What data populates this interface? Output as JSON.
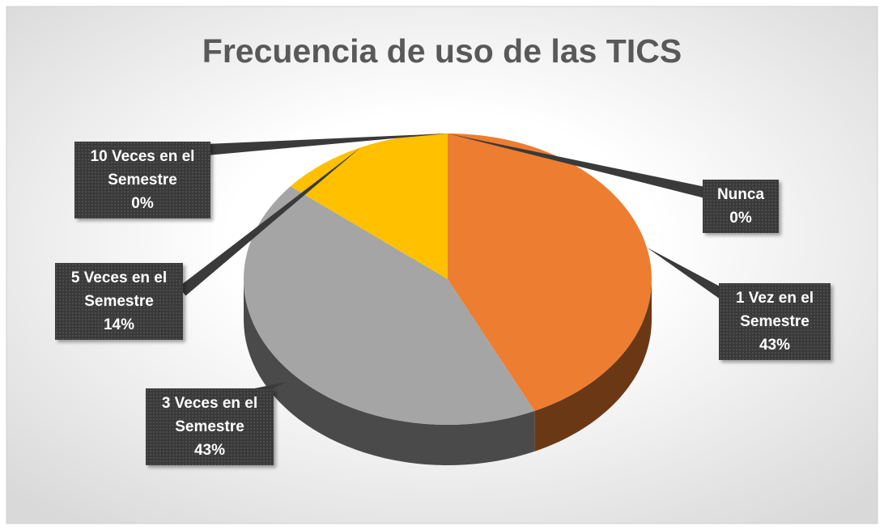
{
  "chart_data": {
    "type": "pie",
    "title": "Frecuencia de uso de las TICS",
    "categories": [
      "Nunca",
      "1 Vez en el Semestre",
      "3 Veces en el Semestre",
      "5 Veces en el Semestre",
      "10 Veces en el Semestre"
    ],
    "values": [
      0,
      43,
      43,
      14,
      0
    ],
    "value_labels": [
      "0%",
      "43%",
      "43%",
      "14%",
      "0%"
    ],
    "colors": [
      "#5B9BD5",
      "#ED7D31",
      "#A5A5A5",
      "#FFC000",
      "#4472C4"
    ]
  }
}
